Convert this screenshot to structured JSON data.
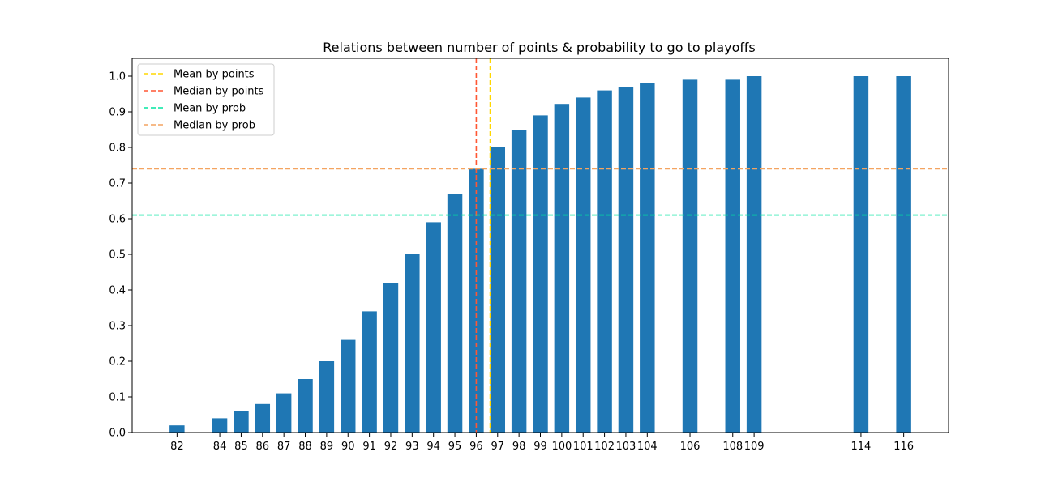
{
  "chart_data": {
    "type": "bar",
    "title": "Relations between number of points & probability to go to playoffs",
    "xlabel": "",
    "ylabel": "",
    "x": [
      82,
      84,
      85,
      86,
      87,
      88,
      89,
      90,
      91,
      92,
      93,
      94,
      95,
      96,
      97,
      98,
      99,
      100,
      101,
      102,
      103,
      104,
      106,
      108,
      109,
      114,
      116
    ],
    "values": [
      0.02,
      0.04,
      0.06,
      0.08,
      0.11,
      0.15,
      0.2,
      0.26,
      0.34,
      0.42,
      0.5,
      0.59,
      0.67,
      0.74,
      0.8,
      0.85,
      0.89,
      0.92,
      0.94,
      0.96,
      0.97,
      0.98,
      0.99,
      0.99,
      1.0,
      1.0,
      1.0
    ],
    "xlim": [
      79.9,
      118.1
    ],
    "ylim": [
      0,
      1.05
    ],
    "yticks": [
      0.0,
      0.1,
      0.2,
      0.3,
      0.4,
      0.5,
      0.6,
      0.7,
      0.8,
      0.9,
      1.0
    ],
    "ytick_labels": [
      "0.0",
      "0.1",
      "0.2",
      "0.3",
      "0.4",
      "0.5",
      "0.6",
      "0.7",
      "0.8",
      "0.9",
      "1.0"
    ],
    "grid": false,
    "bar_color": "#1f77b4",
    "legend_position": "upper-left",
    "reference_lines": [
      {
        "name": "Mean by points",
        "orientation": "vertical",
        "value": 96.65,
        "color": "#ffd700"
      },
      {
        "name": "Median by points",
        "orientation": "vertical",
        "value": 96.0,
        "color": "#ff5733"
      },
      {
        "name": "Mean by prob",
        "orientation": "horizontal",
        "value": 0.61,
        "color": "#00e5a0"
      },
      {
        "name": "Median by prob",
        "orientation": "horizontal",
        "value": 0.74,
        "color": "#f4a460"
      }
    ]
  }
}
